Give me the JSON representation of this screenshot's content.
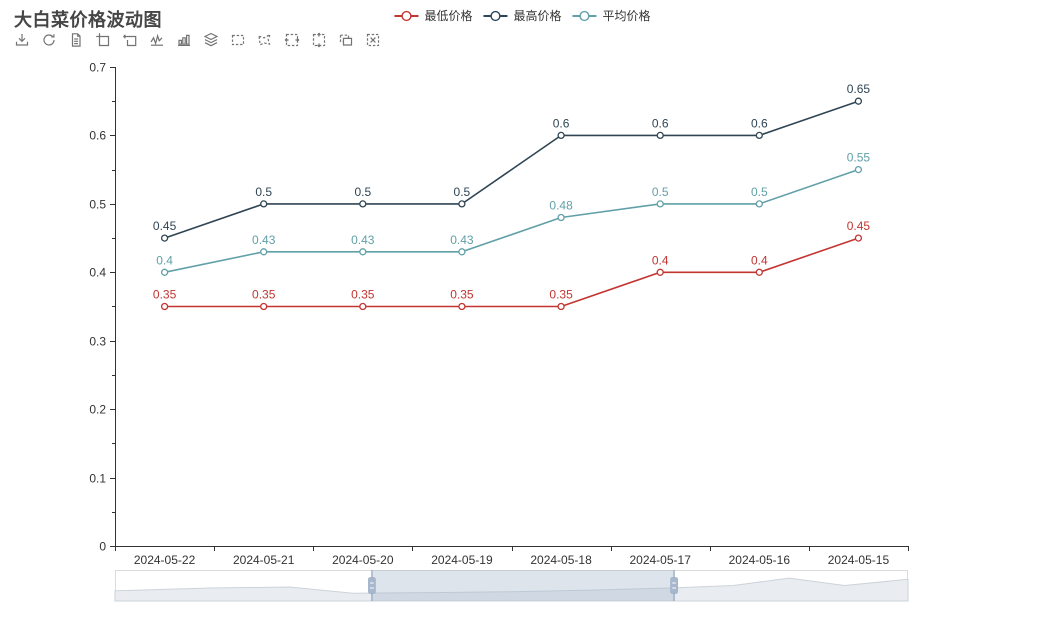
{
  "title": "大白菜价格波动图",
  "legend": {
    "items": [
      {
        "label": "最低价格",
        "color": "#c23531"
      },
      {
        "label": "最高价格",
        "color": "#2f4554"
      },
      {
        "label": "平均价格",
        "color": "#61a0a8"
      }
    ]
  },
  "toolbar": {
    "icons": [
      "save-image-icon",
      "restore-icon",
      "data-view-icon",
      "zoom-select-icon",
      "zoom-restore-icon",
      "line-chart-icon",
      "bar-chart-icon",
      "stack-icon",
      "brush-rect-icon",
      "brush-polygon-icon",
      "brush-horizontal-icon",
      "brush-vertical-icon",
      "brush-keep-icon",
      "brush-clear-icon"
    ]
  },
  "chart_data": {
    "type": "line",
    "title": "大白菜价格波动图",
    "categories": [
      "2024-05-22",
      "2024-05-21",
      "2024-05-20",
      "2024-05-19",
      "2024-05-18",
      "2024-05-17",
      "2024-05-16",
      "2024-05-15"
    ],
    "series": [
      {
        "name": "最低价格",
        "color": "#c23531",
        "values": [
          0.35,
          0.35,
          0.35,
          0.35,
          0.35,
          0.4,
          0.4,
          0.45
        ]
      },
      {
        "name": "最高价格",
        "color": "#2f4554",
        "values": [
          0.45,
          0.5,
          0.5,
          0.5,
          0.6,
          0.6,
          0.6,
          0.65
        ]
      },
      {
        "name": "平均价格",
        "color": "#61a0a8",
        "values": [
          0.4,
          0.43,
          0.43,
          0.43,
          0.48,
          0.5,
          0.5,
          0.55
        ]
      }
    ],
    "xlabel": "",
    "ylabel": "",
    "ylim": [
      0,
      0.7
    ],
    "y_tick_step": 0.1,
    "y_tick_labels": [
      "0",
      "0.1",
      "0.2",
      "0.3",
      "0.4",
      "0.5",
      "0.6",
      "0.7"
    ],
    "grid": false,
    "legend_position": "top-center",
    "point_labels": true
  },
  "datazoom": {
    "selection_start_pct": 32.4,
    "selection_end_pct": 70.5
  }
}
